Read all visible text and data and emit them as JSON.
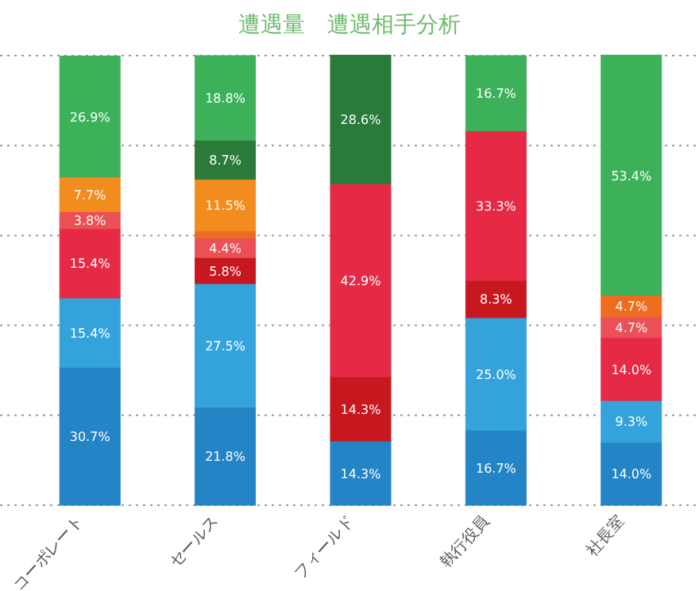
{
  "chart_data": {
    "type": "bar",
    "stacked": true,
    "title": "遭遇量　遭遇相手分析",
    "categories": [
      "コーポレート",
      "セールス",
      "フィールド",
      "執行役員",
      "社長室"
    ],
    "ylim": [
      0,
      100
    ],
    "yticks": [
      {
        "value": 0,
        "label": null
      },
      {
        "value": 20,
        "label": null
      },
      {
        "value": 40,
        "label": null
      },
      {
        "value": 60,
        "label": null
      },
      {
        "value": 80,
        "label": null
      },
      {
        "value": 100,
        "label": null
      }
    ],
    "grid": "y",
    "series": [
      {
        "color": "#2384c6",
        "values": [
          30.7,
          21.8,
          14.3,
          16.7,
          14.0
        ],
        "value_labels": [
          "30.7%",
          "21.8%",
          "14.3%",
          "16.7%",
          "14.0%"
        ]
      },
      {
        "color": "#34a3dc",
        "values": [
          15.4,
          27.5,
          null,
          25.0,
          9.3
        ],
        "value_labels": [
          "15.4%",
          "27.5%",
          null,
          "25.0%",
          "9.3%"
        ]
      },
      {
        "color": "#c8181f",
        "values": [
          null,
          5.8,
          14.3,
          8.3,
          null
        ],
        "value_labels": [
          null,
          "5.8%",
          "14.3%",
          "8.3%",
          null
        ]
      },
      {
        "color": "#e62a46",
        "values": [
          15.4,
          null,
          42.9,
          33.3,
          14.0
        ],
        "value_labels": [
          "15.4%",
          null,
          "42.9%",
          "33.3%",
          "14.0%"
        ]
      },
      {
        "color": "#ea5055",
        "values": [
          3.8,
          4.4,
          null,
          null,
          4.7
        ],
        "value_labels": [
          "3.8%",
          "4.4%",
          null,
          null,
          "4.7%"
        ]
      },
      {
        "color": "#ee6c1e",
        "values": [
          null,
          1.5,
          null,
          null,
          4.7
        ],
        "value_labels": [
          null,
          null,
          null,
          null,
          "4.7%"
        ]
      },
      {
        "color": "#f28c1e",
        "values": [
          7.7,
          11.5,
          null,
          null,
          null
        ],
        "value_labels": [
          "7.7%",
          "11.5%",
          null,
          null,
          null
        ]
      },
      {
        "color": "#2a7a3a",
        "values": [
          null,
          8.7,
          28.6,
          null,
          null
        ],
        "value_labels": [
          null,
          "8.7%",
          "28.6%",
          null,
          null
        ]
      },
      {
        "color": "#3db15a",
        "values": [
          26.9,
          18.8,
          null,
          16.7,
          53.4
        ],
        "value_labels": [
          "26.9%",
          "18.8%",
          null,
          "16.7%",
          "53.4%"
        ]
      }
    ]
  }
}
